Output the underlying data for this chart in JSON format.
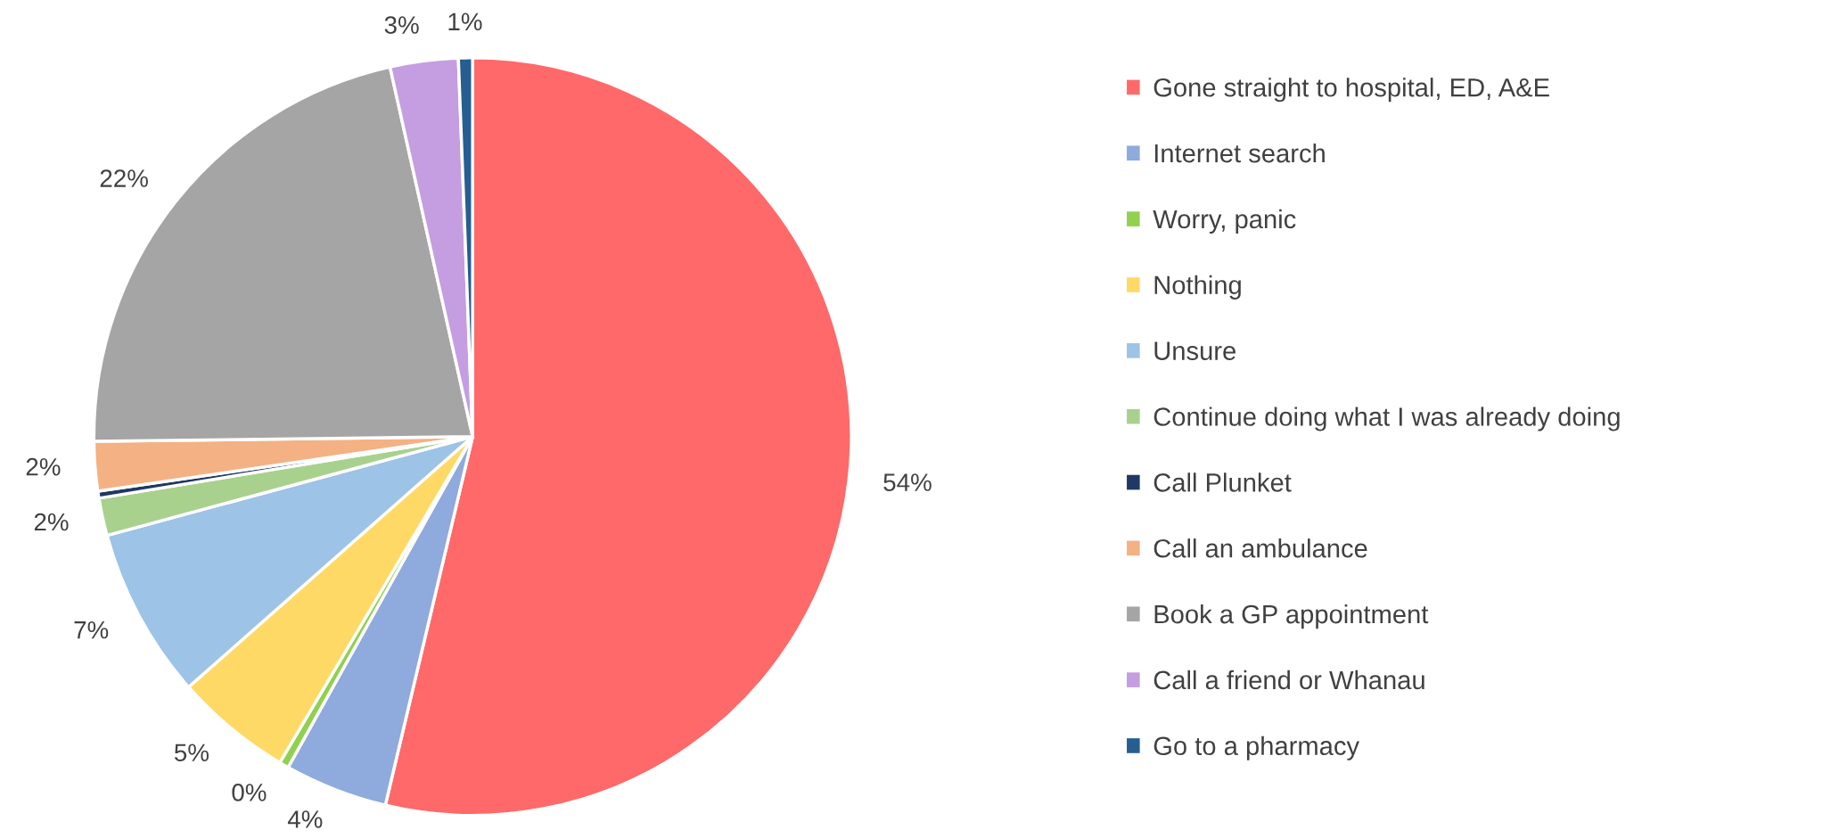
{
  "chart_data": {
    "type": "pie",
    "categories": [
      "Gone straight to hospital, ED, A&E",
      "Internet search",
      "Worry, panic",
      "Nothing",
      "Unsure",
      "Continue doing what I was already doing",
      "Call Plunket",
      "Call an ambulance",
      "Book a GP appointment",
      "Call a friend or Whanau",
      "Go to a pharmacy"
    ],
    "values": [
      53.7,
      4.4,
      0.4,
      5,
      7.3,
      1.6,
      0.3,
      2.1,
      21.7,
      2.9,
      0.6
    ],
    "colors": [
      "#ff6969",
      "#8faadc",
      "#92d050",
      "#ffd966",
      "#9dc3e6",
      "#a9d18e",
      "#203864",
      "#f4b183",
      "#a5a5a5",
      "#c49ee0",
      "#255e91"
    ],
    "value_labels": [
      "54%",
      "4%",
      "0%",
      "5%",
      "7%",
      "2%",
      null,
      "2%",
      "22%",
      "3%",
      "1%"
    ],
    "legend": "right"
  }
}
